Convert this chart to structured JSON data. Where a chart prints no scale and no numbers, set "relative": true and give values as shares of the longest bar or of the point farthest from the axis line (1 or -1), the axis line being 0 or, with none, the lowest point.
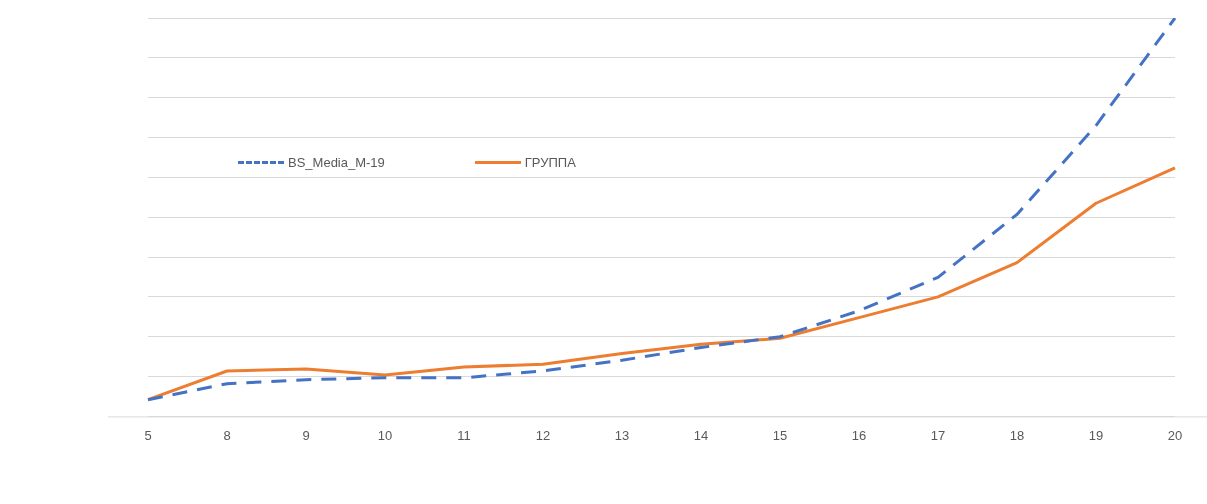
{
  "chart_data": {
    "type": "line",
    "relative": true,
    "grid": "y",
    "legend": "top left",
    "marker": "none",
    "categories": [
      "5",
      "8",
      "9",
      "10",
      "11",
      "12",
      "13",
      "14",
      "15",
      "16",
      "17",
      "18",
      "19",
      "20"
    ],
    "series": [
      {
        "name": "BS_Media_M-19",
        "color": "#4472c4",
        "line_style": "dashed",
        "values": [
          0.042,
          0.082,
          0.092,
          0.097,
          0.097,
          0.114,
          0.141,
          0.173,
          0.2,
          0.265,
          0.349,
          0.507,
          0.73,
          1
        ]
      },
      {
        "name": "ГРУППА",
        "color": "#ed7d31",
        "line_style": "solid",
        "values": [
          0.042,
          0.114,
          0.119,
          0.104,
          0.124,
          0.131,
          0.158,
          0.181,
          0.196,
          0.248,
          0.3,
          0.386,
          0.535,
          0.624
        ]
      }
    ]
  }
}
